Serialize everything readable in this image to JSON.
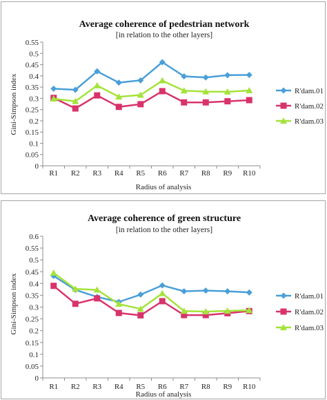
{
  "chart_data": [
    {
      "type": "line",
      "title": "Average coherence of pedestrian network",
      "subtitle": "[in relation to the other layers]",
      "xlabel": "Radius of analysis",
      "ylabel": "Gini-Simpson index",
      "ylim": [
        0,
        0.55
      ],
      "ystep": 0.05,
      "yticks": [
        "0",
        "0.05",
        "0.1",
        "0.15",
        "0.2",
        "0.25",
        "0.3",
        "0.35",
        "0.4",
        "0.45",
        "0.5",
        "0.55"
      ],
      "categories": [
        "R1",
        "R2",
        "R3",
        "R4",
        "R5",
        "R6",
        "R7",
        "R8",
        "R9",
        "R10"
      ],
      "grid": false,
      "legend": "right",
      "series": [
        {
          "name": "R'dam.01",
          "color": "#4a9fd8",
          "marker": "diamond",
          "values": [
            0.343,
            0.338,
            0.42,
            0.37,
            0.38,
            0.461,
            0.398,
            0.393,
            0.403,
            0.404
          ]
        },
        {
          "name": "R'dam.02",
          "color": "#d8336b",
          "marker": "square",
          "values": [
            0.302,
            0.255,
            0.313,
            0.262,
            0.274,
            0.332,
            0.282,
            0.282,
            0.287,
            0.292
          ]
        },
        {
          "name": "R'dam.03",
          "color": "#a4e33a",
          "marker": "triangle",
          "values": [
            0.298,
            0.287,
            0.357,
            0.307,
            0.315,
            0.379,
            0.334,
            0.33,
            0.329,
            0.335
          ]
        }
      ]
    },
    {
      "type": "line",
      "title": "Average coherence of green structure",
      "subtitle": "[in relation to the other layers]",
      "xlabel": "Radius of analysis",
      "ylabel": "Gini-Simpson index",
      "ylim": [
        0,
        0.6
      ],
      "ystep": 0.05,
      "yticks": [
        "0",
        "0.05",
        "0.1",
        "0.15",
        "0.2",
        "0.25",
        "0.3",
        "0.35",
        "0.4",
        "0.45",
        "0.5",
        "0.55",
        "0.6"
      ],
      "categories": [
        "R1",
        "R2",
        "R3",
        "R4",
        "R5",
        "R6",
        "R7",
        "R8",
        "R9",
        "R10"
      ],
      "grid": false,
      "legend": "right",
      "series": [
        {
          "name": "R'dam.01",
          "color": "#4a9fd8",
          "marker": "diamond",
          "values": [
            0.432,
            0.373,
            0.343,
            0.322,
            0.353,
            0.392,
            0.367,
            0.37,
            0.367,
            0.362
          ]
        },
        {
          "name": "R'dam.02",
          "color": "#d8336b",
          "marker": "square",
          "values": [
            0.39,
            0.314,
            0.337,
            0.275,
            0.265,
            0.325,
            0.266,
            0.266,
            0.274,
            0.283
          ]
        },
        {
          "name": "R'dam.03",
          "color": "#a4e33a",
          "marker": "triangle",
          "values": [
            0.445,
            0.377,
            0.373,
            0.313,
            0.292,
            0.358,
            0.283,
            0.281,
            0.284,
            0.286
          ]
        }
      ]
    }
  ]
}
